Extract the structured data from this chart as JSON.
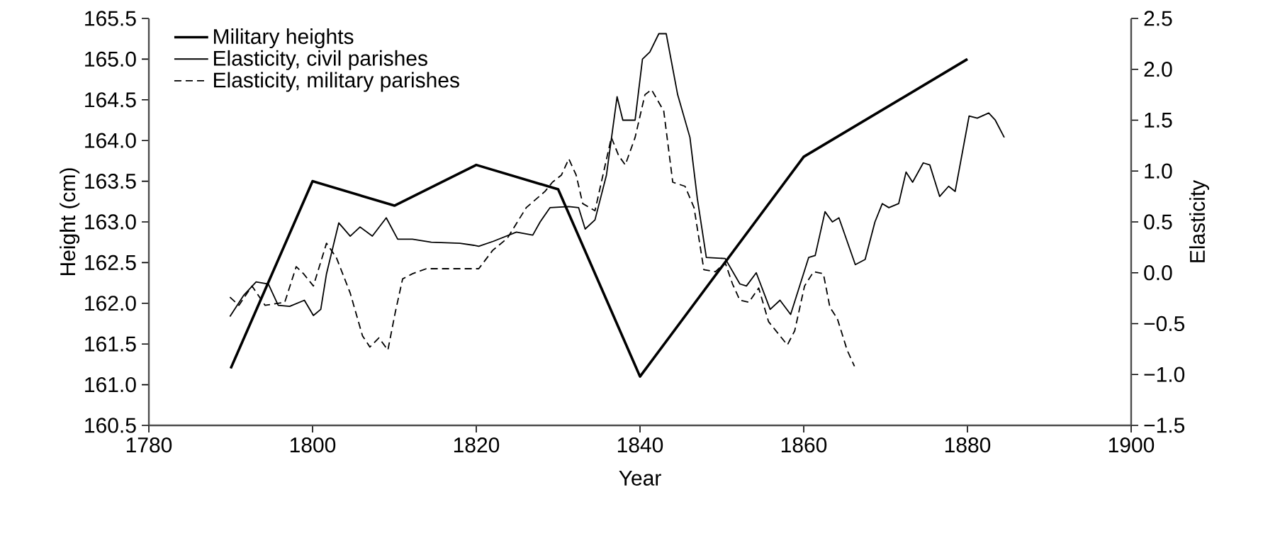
{
  "chart_data": {
    "type": "line",
    "xlabel": "Year",
    "ylabel": "Height (cm)",
    "y2label": "Elasticity",
    "xlim": [
      1780,
      1900
    ],
    "xticks": [
      1780,
      1800,
      1820,
      1840,
      1860,
      1880,
      1900
    ],
    "ylim": [
      160.5,
      165.5
    ],
    "yticks": [
      {
        "value": 160.5,
        "label": "160.5"
      },
      {
        "value": 161,
        "label": "161.0"
      },
      {
        "value": 161.5,
        "label": "161.5"
      },
      {
        "value": 162,
        "label": "162.0"
      },
      {
        "value": 162.5,
        "label": "162.5"
      },
      {
        "value": 163,
        "label": "163.0"
      },
      {
        "value": 163.5,
        "label": "163.5"
      },
      {
        "value": 164,
        "label": "164.0"
      },
      {
        "value": 164.5,
        "label": "164.5"
      },
      {
        "value": 165,
        "label": "165.0"
      },
      {
        "value": 165.5,
        "label": "165.5"
      }
    ],
    "y2lim": [
      -1.5,
      2.5
    ],
    "y2ticks": [
      {
        "value": -1.5,
        "label": "−1.5"
      },
      {
        "value": -1,
        "label": "−1.0"
      },
      {
        "value": -0.5,
        "label": "−0.5"
      },
      {
        "value": 0,
        "label": "0.0"
      },
      {
        "value": 0.5,
        "label": "0.5"
      },
      {
        "value": 1,
        "label": "1.0"
      },
      {
        "value": 1.5,
        "label": "1.5"
      },
      {
        "value": 2,
        "label": "2.0"
      },
      {
        "value": 2.5,
        "label": "2.5"
      }
    ],
    "legend": "top left",
    "marker": "none",
    "series": [
      {
        "name": "Military heights",
        "color": "#000000",
        "line_style": "solid",
        "x": [
          1790,
          1800,
          1810,
          1820,
          1830,
          1840,
          1860,
          1880
        ],
        "values": [
          161.2,
          163.5,
          163.2,
          163.7,
          163.4,
          161.1,
          163.8,
          165.0
        ]
      },
      {
        "name": "Elasticity, civil parishes",
        "color": "#000000",
        "line_style": "solid",
        "axis": "y2",
        "x": [
          1789.9,
          1791.6,
          1793.1,
          1794.6,
          1795.8,
          1797.2,
          1799.0,
          1800.1,
          1801.0,
          1801.7,
          1803.2,
          1804.6,
          1805.8,
          1807.3,
          1809.0,
          1810.4,
          1812.2,
          1814.5,
          1818.0,
          1819.7,
          1820.3,
          1822.1,
          1824.9,
          1826.9,
          1827.8,
          1829.0,
          1831.3,
          1832.5,
          1833.3,
          1834.5,
          1835.9,
          1837.2,
          1837.9,
          1839.4,
          1840.3,
          1841.2,
          1842.3,
          1843.2,
          1844.6,
          1846.1,
          1847.0,
          1848.1,
          1850.4,
          1852.2,
          1853.0,
          1854.2,
          1855.9,
          1857.1,
          1858.4,
          1860.6,
          1861.4,
          1862.6,
          1863.5,
          1864.3,
          1866.3,
          1867.5,
          1868.7,
          1869.6,
          1870.4,
          1871.6,
          1872.5,
          1873.3,
          1874.6,
          1875.4,
          1876.6,
          1877.7,
          1878.5,
          1880.2,
          1881.2,
          1882.6,
          1883.4,
          1884.5
        ],
        "values": [
          -0.43,
          -0.22,
          -0.09,
          -0.11,
          -0.32,
          -0.33,
          -0.27,
          -0.42,
          -0.36,
          -0.01,
          0.49,
          0.36,
          0.45,
          0.36,
          0.54,
          0.33,
          0.33,
          0.3,
          0.29,
          0.27,
          0.26,
          0.31,
          0.4,
          0.37,
          0.5,
          0.64,
          0.65,
          0.64,
          0.43,
          0.52,
          0.96,
          1.73,
          1.5,
          1.5,
          2.1,
          2.17,
          2.35,
          2.35,
          1.75,
          1.33,
          0.73,
          0.15,
          0.14,
          -0.11,
          -0.13,
          0.0,
          -0.36,
          -0.27,
          -0.41,
          0.15,
          0.17,
          0.6,
          0.5,
          0.54,
          0.08,
          0.13,
          0.5,
          0.68,
          0.64,
          0.68,
          0.99,
          0.89,
          1.08,
          1.06,
          0.75,
          0.85,
          0.8,
          1.54,
          1.52,
          1.57,
          1.5,
          1.33
        ]
      },
      {
        "name": "Elasticity, military parishes",
        "color": "#000000",
        "line_style": "dashed",
        "axis": "y2",
        "x": [
          1789.9,
          1791.0,
          1792.6,
          1794.2,
          1796.6,
          1798.0,
          1798.9,
          1800.1,
          1801.7,
          1802.9,
          1804.6,
          1806.1,
          1807.0,
          1808.1,
          1809.2,
          1810.1,
          1811.0,
          1812.2,
          1813.9,
          1820.3,
          1822.0,
          1823.8,
          1826.1,
          1828.4,
          1829.3,
          1830.4,
          1831.3,
          1832.2,
          1833.0,
          1834.5,
          1836.5,
          1837.4,
          1838.2,
          1839.4,
          1840.6,
          1841.4,
          1842.9,
          1844.0,
          1845.5,
          1846.6,
          1847.8,
          1849.2,
          1850.4,
          1851.3,
          1852.2,
          1853.3,
          1854.5,
          1855.7,
          1856.8,
          1858.0,
          1858.9,
          1860.1,
          1861.2,
          1862.4,
          1863.2,
          1864.1,
          1865.3,
          1866.2
        ],
        "values": [
          -0.24,
          -0.32,
          -0.13,
          -0.32,
          -0.29,
          0.06,
          -0.01,
          -0.13,
          0.29,
          0.15,
          -0.2,
          -0.62,
          -0.73,
          -0.64,
          -0.76,
          -0.39,
          -0.06,
          -0.01,
          0.04,
          0.04,
          0.22,
          0.34,
          0.64,
          0.8,
          0.89,
          0.96,
          1.12,
          0.96,
          0.68,
          0.61,
          1.33,
          1.15,
          1.06,
          1.33,
          1.75,
          1.8,
          1.59,
          0.89,
          0.85,
          0.64,
          0.03,
          0.01,
          0.1,
          -0.11,
          -0.27,
          -0.29,
          -0.15,
          -0.48,
          -0.59,
          -0.71,
          -0.57,
          -0.13,
          0.01,
          -0.01,
          -0.34,
          -0.45,
          -0.76,
          -0.92
        ]
      }
    ]
  }
}
